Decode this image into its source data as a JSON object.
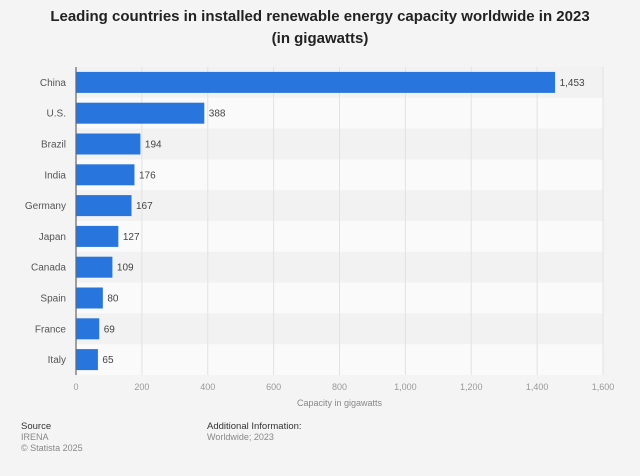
{
  "chart_data": {
    "type": "bar",
    "orientation": "horizontal",
    "title": "Leading countries in installed renewable energy capacity worldwide in 2023 (in gigawatts)",
    "categories": [
      "China",
      "U.S.",
      "Brazil",
      "India",
      "Germany",
      "Japan",
      "Canada",
      "Spain",
      "France",
      "Italy"
    ],
    "values": [
      1453,
      388,
      194,
      176,
      167,
      127,
      109,
      80,
      69,
      65
    ],
    "value_labels": [
      "1,453",
      "388",
      "194",
      "176",
      "167",
      "127",
      "109",
      "80",
      "69",
      "65"
    ],
    "xlabel": "Capacity in gigawatts",
    "xlim": [
      0,
      1600
    ],
    "xticks": [
      "0",
      "200",
      "400",
      "600",
      "800",
      "1,000",
      "1,200",
      "1,400",
      "1,600"
    ],
    "grid": true,
    "bar_color": "#2876dd"
  },
  "footer": {
    "source_heading": "Source",
    "source": "IRENA",
    "copyright": "© Statista 2025",
    "additional_heading": "Additional Information:",
    "additional": "Worldwide; 2023"
  }
}
